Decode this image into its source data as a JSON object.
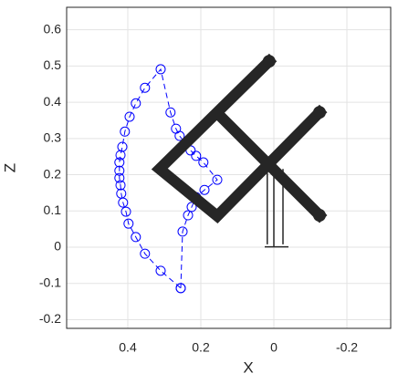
{
  "chart_data": {
    "type": "line",
    "x_label": "X",
    "y_label": "Z",
    "xlim": [
      0.5675,
      -0.32
    ],
    "ylim": [
      -0.224,
      0.662
    ],
    "xticks": [
      0.4,
      0.2,
      0,
      -0.2
    ],
    "yticks": [
      -0.2,
      -0.1,
      0,
      0.1,
      0.2,
      0.3,
      0.4,
      0.5,
      0.6
    ],
    "grid": true,
    "series": [
      {
        "color": "#0000ff",
        "style": "dashed",
        "marker": "circle",
        "width": 1,
        "x": [
          0.255,
          0.25,
          0.235,
          0.225,
          0.213,
          0.19,
          0.155,
          0.193,
          0.213,
          0.228,
          0.243,
          0.258,
          0.268,
          0.283,
          0.31,
          0.353,
          0.378,
          0.395,
          0.408,
          0.415,
          0.42,
          0.423,
          0.423,
          0.423,
          0.42,
          0.418,
          0.413,
          0.405,
          0.398,
          0.378,
          0.353,
          0.31,
          0.255
        ],
        "y": [
          -0.113,
          0.043,
          0.088,
          0.111,
          0.138,
          0.158,
          0.186,
          0.234,
          0.252,
          0.267,
          0.287,
          0.307,
          0.327,
          0.372,
          0.491,
          0.44,
          0.397,
          0.36,
          0.319,
          0.277,
          0.254,
          0.234,
          0.211,
          0.191,
          0.171,
          0.148,
          0.123,
          0.098,
          0.065,
          0.028,
          -0.018,
          -0.065,
          -0.113
        ]
      },
      {
        "color": "#262626",
        "style": "solid",
        "marker": "end-dot",
        "width": 12,
        "x": [
          0.013,
          0.313,
          0.155,
          -0.125,
          null,
          0.155,
          -0.125
        ],
        "y": [
          0.513,
          0.216,
          0.086,
          0.372,
          null,
          0.37,
          0.088
        ]
      },
      {
        "color": "#262626",
        "style": "solid",
        "marker": "none",
        "width": 1.5,
        "x": [
          0.018,
          0.018,
          null,
          0,
          0,
          null,
          -0.025,
          -0.025,
          null,
          0.025,
          -0.04
        ],
        "y": [
          0.216,
          0.008,
          null,
          0.216,
          0.001,
          null,
          0.216,
          0.008,
          null,
          0.001,
          0.001
        ]
      }
    ]
  }
}
